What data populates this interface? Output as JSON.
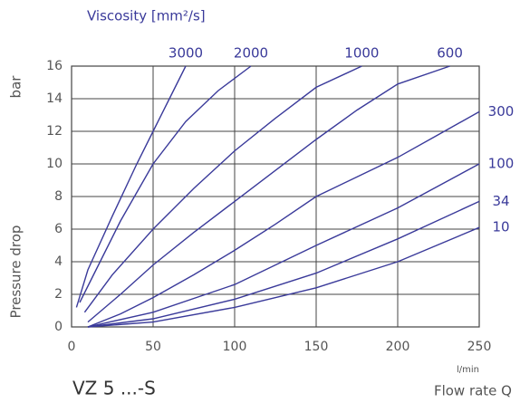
{
  "chart_data": {
    "type": "line",
    "title": "Viscosity [mm²/s]",
    "ylabel": "Pressure drop",
    "yunit": "bar",
    "xlabel": "Flow rate Q",
    "xunit": "l/min",
    "caption": "VZ 5 ...-S",
    "xlim": [
      0,
      250
    ],
    "xticks": [
      0,
      50,
      100,
      150,
      200,
      250
    ],
    "ylim": [
      0,
      16
    ],
    "yticks": [
      0,
      2,
      4,
      6,
      8,
      10,
      12,
      14,
      16
    ],
    "grid": true,
    "series": [
      {
        "name": "3000",
        "color": "#3a3a9a",
        "x": [
          3,
          10,
          25,
          40,
          50,
          60,
          70
        ],
        "values": [
          1.2,
          3.5,
          6.8,
          10,
          12,
          14,
          16
        ]
      },
      {
        "name": "2000",
        "color": "#3a3a9a",
        "x": [
          5,
          15,
          30,
          50,
          70,
          90,
          110
        ],
        "values": [
          1.5,
          3.5,
          6.5,
          10,
          12.6,
          14.5,
          16
        ]
      },
      {
        "name": "1000",
        "color": "#3a3a9a",
        "x": [
          8,
          25,
          50,
          75,
          100,
          125,
          150,
          178
        ],
        "values": [
          0.9,
          3.2,
          6,
          8.5,
          10.8,
          12.8,
          14.7,
          16
        ]
      },
      {
        "name": "600",
        "color": "#3a3a9a",
        "x": [
          10,
          30,
          50,
          75,
          100,
          125,
          150,
          175,
          200,
          232
        ],
        "values": [
          0.3,
          2,
          3.8,
          5.8,
          7.7,
          9.6,
          11.5,
          13.3,
          14.9,
          16
        ]
      },
      {
        "name": "300",
        "color": "#3a3a9a",
        "x": [
          10,
          30,
          50,
          75,
          100,
          125,
          150,
          175,
          200,
          225,
          250
        ],
        "values": [
          0,
          0.8,
          1.8,
          3.2,
          4.7,
          6.3,
          8,
          9.2,
          10.4,
          11.8,
          13.2
        ]
      },
      {
        "name": "100",
        "color": "#3a3a9a",
        "x": [
          10,
          50,
          100,
          150,
          200,
          250
        ],
        "values": [
          0,
          0.9,
          2.6,
          5,
          7.3,
          10
        ]
      },
      {
        "name": "34",
        "color": "#3a3a9a",
        "x": [
          10,
          50,
          100,
          150,
          200,
          250
        ],
        "values": [
          0,
          0.5,
          1.7,
          3.3,
          5.4,
          7.7
        ]
      },
      {
        "name": "10",
        "color": "#3a3a9a",
        "x": [
          10,
          50,
          100,
          150,
          200,
          250
        ],
        "values": [
          0,
          0.3,
          1.2,
          2.4,
          4,
          6.1
        ]
      }
    ]
  }
}
